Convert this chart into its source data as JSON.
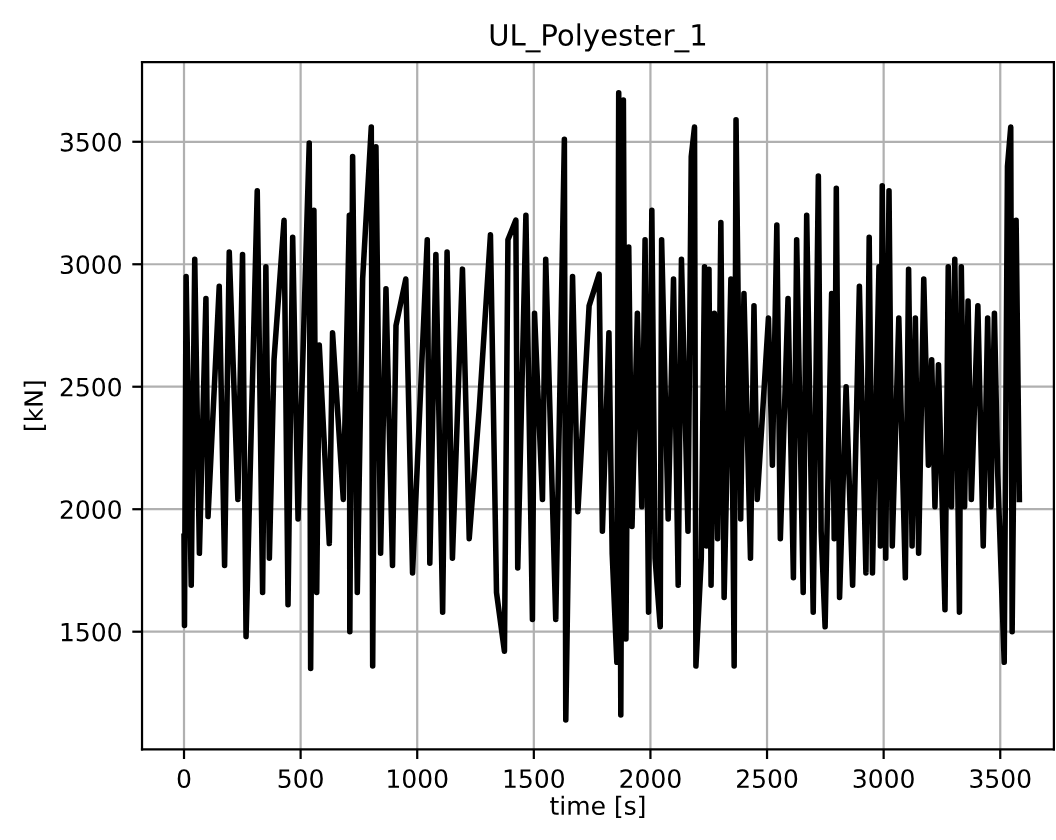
{
  "chart_data": {
    "type": "line",
    "title": "UL_Polyester_1",
    "xlabel": "time [s]",
    "ylabel": "[kN]",
    "xlim": [
      -180,
      3730
    ],
    "xticks": [
      0,
      500,
      1000,
      1500,
      2000,
      2500,
      3000,
      3500
    ],
    "ylim": [
      1020,
      3825
    ],
    "yticks": [
      1500,
      2000,
      2500,
      3000,
      3500
    ],
    "grid": true,
    "legend": false,
    "series": [
      {
        "color": "#000000",
        "x": [
          0,
          2,
          9,
          31,
          46,
          66,
          94,
          103,
          151,
          174,
          194,
          231,
          251,
          266,
          314,
          337,
          351,
          366,
          386,
          429,
          446,
          466,
          489,
          537,
          543,
          557,
          569,
          580,
          623,
          637,
          683,
          709,
          711,
          723,
          743,
          766,
          803,
          809,
          823,
          843,
          866,
          894,
          909,
          951,
          980,
          1043,
          1054,
          1080,
          1109,
          1128,
          1151,
          1194,
          1223,
          1266,
          1314,
          1340,
          1374,
          1389,
          1423,
          1431,
          1466,
          1494,
          1503,
          1537,
          1551,
          1594,
          1631,
          1637,
          1666,
          1689,
          1737,
          1780,
          1794,
          1822,
          1836,
          1856,
          1864,
          1873,
          1884,
          1895,
          1907,
          1921,
          1944,
          1963,
          1977,
          1992,
          2006,
          2020,
          2042,
          2048,
          2076,
          2099,
          2119,
          2133,
          2161,
          2175,
          2189,
          2195,
          2218,
          2232,
          2240,
          2251,
          2260,
          2274,
          2288,
          2302,
          2316,
          2345,
          2359,
          2367,
          2387,
          2401,
          2429,
          2444,
          2458,
          2506,
          2523,
          2542,
          2557,
          2590,
          2613,
          2627,
          2655,
          2670,
          2698,
          2720,
          2732,
          2749,
          2777,
          2788,
          2797,
          2811,
          2839,
          2867,
          2896,
          2924,
          2938,
          2952,
          2980,
          2986,
          2994,
          3009,
          3023,
          3037,
          3065,
          3093,
          3107,
          3122,
          3136,
          3150,
          3172,
          3192,
          3206,
          3220,
          3235,
          3263,
          3277,
          3291,
          3305,
          3325,
          3333,
          3347,
          3362,
          3376,
          3404,
          3427,
          3446,
          3460,
          3475,
          3489,
          3517,
          3531,
          3545,
          3551,
          3568,
          3582
        ],
        "values": [
          1890,
          1525,
          2950,
          1690,
          3020,
          1820,
          2860,
          1970,
          2910,
          1770,
          3050,
          2040,
          3040,
          1480,
          3300,
          1660,
          2990,
          1800,
          2610,
          3180,
          1610,
          3110,
          1960,
          3495,
          1350,
          3220,
          1660,
          2670,
          1860,
          2720,
          2040,
          3200,
          1500,
          3440,
          1660,
          2940,
          3560,
          1360,
          3480,
          1820,
          2900,
          1770,
          2750,
          2940,
          1740,
          3100,
          1780,
          3040,
          1580,
          3050,
          1800,
          2980,
          1880,
          2410,
          3120,
          1660,
          1420,
          3100,
          3180,
          1760,
          3200,
          1550,
          2800,
          2040,
          3020,
          1550,
          3510,
          1140,
          2950,
          1990,
          2830,
          2960,
          1910,
          2720,
          1820,
          1375,
          3700,
          1160,
          3670,
          1470,
          3070,
          1930,
          2800,
          2010,
          3100,
          1580,
          3220,
          1800,
          1520,
          3100,
          1960,
          2940,
          1690,
          3020,
          1910,
          3440,
          3560,
          1360,
          1800,
          2990,
          1850,
          2980,
          1690,
          2800,
          1880,
          3170,
          1640,
          2940,
          1360,
          3590,
          1960,
          2880,
          1800,
          2830,
          2040,
          2780,
          2180,
          3160,
          1880,
          2860,
          1720,
          3100,
          1660,
          3200,
          1580,
          3360,
          1910,
          1520,
          2880,
          1880,
          3310,
          1640,
          2500,
          1690,
          2910,
          1740,
          3110,
          1740,
          2990,
          1850,
          3320,
          1800,
          3300,
          1850,
          2780,
          1720,
          2980,
          1850,
          2780,
          1820,
          2940,
          2180,
          2610,
          2010,
          2590,
          1590,
          2990,
          2010,
          3020,
          1580,
          2990,
          2010,
          2850,
          2040,
          2830,
          1850,
          2780,
          2010,
          2800,
          2150,
          1375,
          3400,
          3560,
          1500,
          3180,
          2040
        ]
      }
    ]
  }
}
